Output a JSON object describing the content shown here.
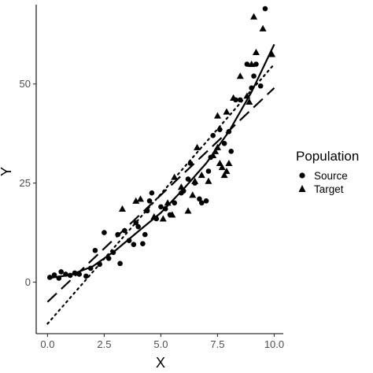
{
  "chart_data": {
    "type": "scatter",
    "xlabel": "X",
    "ylabel": "Y",
    "xlim": [
      -0.5,
      10.4
    ],
    "ylim": [
      -13,
      70
    ],
    "x_ticks": [
      0.0,
      2.5,
      5.0,
      7.5,
      10.0
    ],
    "x_tick_labels": [
      "0.0",
      "2.5",
      "5.0",
      "7.5",
      "10.0"
    ],
    "y_ticks": [
      0,
      25,
      50
    ],
    "y_tick_labels": [
      "0",
      "25",
      "50"
    ],
    "grid": false,
    "legend": {
      "title": "Population",
      "position": "right",
      "entries": [
        {
          "label": "Source",
          "shape": "circle"
        },
        {
          "label": "Target",
          "shape": "triangle"
        }
      ]
    },
    "series": [
      {
        "name": "Source",
        "shape": "circle",
        "points": [
          [
            0.1,
            1.2
          ],
          [
            0.3,
            1.8
          ],
          [
            0.5,
            1.0
          ],
          [
            0.6,
            2.6
          ],
          [
            0.8,
            2.0
          ],
          [
            1.0,
            1.7
          ],
          [
            1.2,
            2.3
          ],
          [
            1.4,
            2.0
          ],
          [
            1.7,
            1.5
          ],
          [
            1.9,
            3.5
          ],
          [
            2.1,
            8.0
          ],
          [
            2.3,
            4.5
          ],
          [
            2.5,
            12.5
          ],
          [
            2.7,
            6.0
          ],
          [
            2.9,
            7.5
          ],
          [
            3.1,
            12.0
          ],
          [
            3.2,
            4.7
          ],
          [
            3.4,
            13.0
          ],
          [
            3.6,
            10.5
          ],
          [
            3.8,
            9.5
          ],
          [
            3.9,
            15.0
          ],
          [
            4.0,
            14.0
          ],
          [
            4.2,
            9.7
          ],
          [
            4.3,
            12.0
          ],
          [
            4.4,
            18.0
          ],
          [
            4.5,
            20.5
          ],
          [
            4.6,
            22.5
          ],
          [
            4.8,
            16.0
          ],
          [
            5.0,
            19.0
          ],
          [
            5.2,
            18.5
          ],
          [
            5.4,
            17.0
          ],
          [
            5.6,
            20.0
          ],
          [
            5.9,
            22.5
          ],
          [
            6.0,
            23.0
          ],
          [
            6.2,
            26.0
          ],
          [
            6.3,
            30.0
          ],
          [
            6.5,
            25.0
          ],
          [
            6.7,
            21.0
          ],
          [
            6.8,
            20.0
          ],
          [
            7.0,
            20.5
          ],
          [
            7.1,
            28.0
          ],
          [
            7.2,
            31.5
          ],
          [
            7.3,
            37.0
          ],
          [
            7.6,
            38.5
          ],
          [
            7.8,
            35.0
          ],
          [
            8.0,
            38.0
          ],
          [
            8.1,
            33.0
          ],
          [
            8.3,
            46.0
          ],
          [
            8.5,
            46.0
          ],
          [
            8.8,
            55.0
          ],
          [
            9.0,
            49.0
          ],
          [
            9.1,
            52.0
          ],
          [
            9.2,
            55.0
          ],
          [
            9.4,
            49.5
          ],
          [
            9.6,
            69.0
          ]
        ]
      },
      {
        "name": "Target",
        "shape": "triangle",
        "points": [
          [
            3.3,
            18.5
          ],
          [
            3.9,
            20.5
          ],
          [
            4.1,
            21.0
          ],
          [
            4.7,
            16.5
          ],
          [
            5.1,
            16.0
          ],
          [
            5.3,
            20.0
          ],
          [
            5.5,
            17.0
          ],
          [
            5.9,
            24.0
          ],
          [
            6.2,
            18.0
          ],
          [
            6.4,
            22.0
          ],
          [
            6.5,
            25.5
          ],
          [
            6.6,
            34.0
          ],
          [
            6.8,
            27.0
          ],
          [
            7.1,
            25.5
          ],
          [
            7.3,
            32.0
          ],
          [
            7.4,
            33.0
          ],
          [
            7.5,
            34.0
          ],
          [
            7.6,
            30.0
          ],
          [
            7.7,
            29.0
          ],
          [
            7.8,
            27.0
          ],
          [
            7.9,
            28.0
          ],
          [
            8.0,
            30.0
          ],
          [
            7.5,
            42.0
          ],
          [
            7.9,
            43.0
          ],
          [
            8.2,
            46.5
          ],
          [
            8.5,
            52.0
          ],
          [
            8.8,
            47.0
          ],
          [
            8.9,
            45.5
          ],
          [
            9.0,
            55.0
          ],
          [
            9.2,
            58.0
          ],
          [
            9.5,
            64.0
          ],
          [
            9.9,
            57.5
          ],
          [
            9.1,
            67.0
          ],
          [
            5.6,
            26.5
          ]
        ]
      }
    ],
    "fitted_lines": [
      {
        "style": "solid",
        "x": [
          0.0,
          1.0,
          2.0,
          3.0,
          4.0,
          5.0,
          6.0,
          7.0,
          8.0,
          9.0,
          10.0
        ],
        "y": [
          1.0,
          1.8,
          4.0,
          8.0,
          12.8,
          17.5,
          23.5,
          30.0,
          38.0,
          48.0,
          60.0
        ]
      },
      {
        "style": "dashed",
        "x": [
          0.0,
          10.0
        ],
        "y": [
          -5.0,
          49.0
        ]
      },
      {
        "style": "dotted",
        "x": [
          0.0,
          10.0
        ],
        "y": [
          -10.5,
          55.0
        ]
      }
    ]
  }
}
